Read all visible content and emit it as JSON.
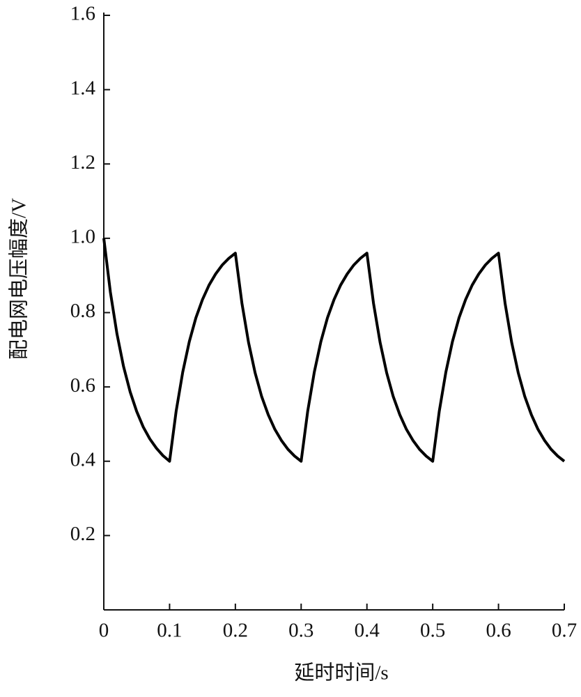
{
  "chart_data": {
    "type": "line",
    "x_label": "延时时间/s",
    "y_label": "配电网电压幅度/V",
    "color": "#000000",
    "x": [
      0,
      0.01,
      0.02,
      0.03,
      0.04,
      0.05,
      0.06,
      0.07,
      0.08,
      0.09,
      0.1,
      0.11,
      0.12,
      0.13,
      0.14,
      0.15,
      0.16,
      0.17,
      0.18,
      0.19,
      0.2,
      0.21,
      0.22,
      0.23,
      0.24,
      0.25,
      0.26,
      0.27,
      0.28,
      0.29,
      0.3,
      0.31,
      0.32,
      0.33,
      0.34,
      0.35,
      0.36,
      0.37,
      0.38,
      0.39,
      0.4,
      0.41,
      0.42,
      0.43,
      0.44,
      0.45,
      0.46,
      0.47,
      0.48,
      0.49,
      0.5,
      0.51,
      0.52,
      0.53,
      0.54,
      0.55,
      0.56,
      0.57,
      0.58,
      0.59,
      0.6,
      0.61,
      0.62,
      0.63,
      0.64,
      0.65,
      0.66,
      0.67,
      0.68,
      0.69,
      0.7
    ],
    "values": [
      1.0,
      0.855,
      0.743,
      0.655,
      0.587,
      0.534,
      0.492,
      0.46,
      0.435,
      0.415,
      0.4,
      0.535,
      0.64,
      0.722,
      0.786,
      0.835,
      0.874,
      0.904,
      0.928,
      0.946,
      0.96,
      0.825,
      0.72,
      0.638,
      0.574,
      0.525,
      0.486,
      0.456,
      0.432,
      0.414,
      0.4,
      0.535,
      0.64,
      0.722,
      0.786,
      0.835,
      0.874,
      0.904,
      0.928,
      0.946,
      0.96,
      0.825,
      0.72,
      0.638,
      0.574,
      0.525,
      0.486,
      0.456,
      0.432,
      0.414,
      0.4,
      0.535,
      0.64,
      0.722,
      0.786,
      0.835,
      0.874,
      0.904,
      0.928,
      0.946,
      0.96,
      0.825,
      0.72,
      0.638,
      0.574,
      0.525,
      0.486,
      0.456,
      0.432,
      0.414,
      0.4
    ],
    "xlim": [
      0,
      0.7
    ],
    "xticks": [
      0,
      0.1,
      0.2,
      0.3,
      0.4,
      0.5,
      0.6,
      0.7
    ],
    "ylim": [
      0,
      1.6
    ],
    "yticks": [
      0.2,
      0.4,
      0.6,
      0.8,
      {
        "value": 1,
        "label": "1.0"
      },
      1.2,
      1.4,
      1.6
    ]
  }
}
